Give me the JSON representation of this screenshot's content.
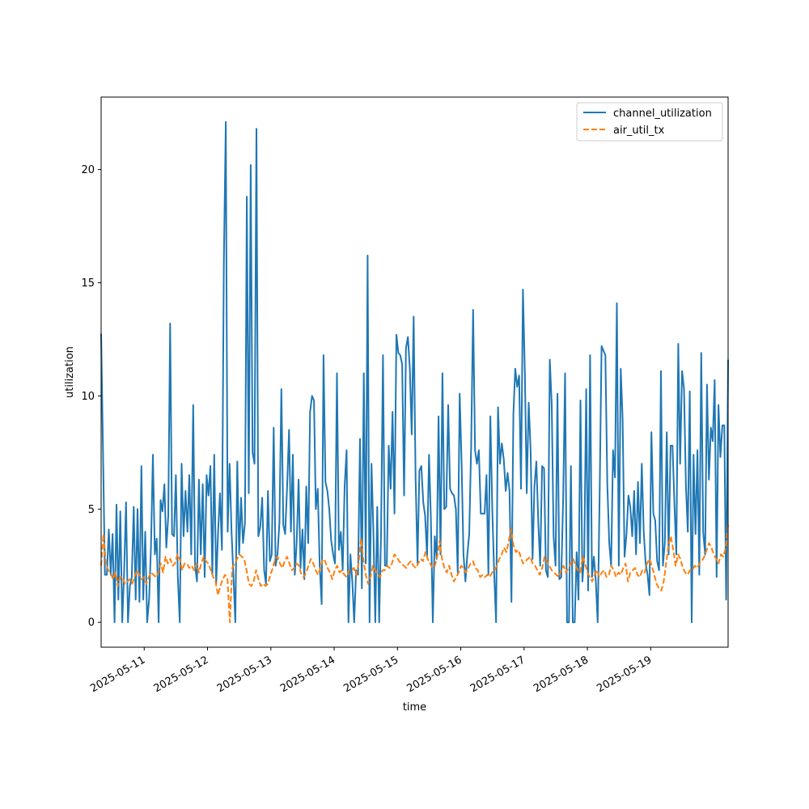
{
  "chart_data": {
    "type": "line",
    "title": "",
    "xlabel": "time",
    "ylabel": "utilization",
    "x_range": [
      "2025-05-10T07:40",
      "2025-05-20T05:20"
    ],
    "xlim": [
      "2025-05-10T07:40",
      "2025-05-20T05:20"
    ],
    "ylim": [
      -1.1,
      23.2
    ],
    "grid": false,
    "legend_position": "upper right",
    "x_ticks": [
      "2025-05-11",
      "2025-05-12",
      "2025-05-13",
      "2025-05-14",
      "2025-05-15",
      "2025-05-16",
      "2025-05-17",
      "2025-05-18",
      "2025-05-19"
    ],
    "y_ticks": [
      0,
      5,
      10,
      15,
      20
    ],
    "series": [
      {
        "name": "channel_utilization",
        "color": "#1f77b4",
        "dash": "solid",
        "values": [
          12.75,
          7.4,
          2.1,
          2.1,
          4.1,
          2.1,
          3.9,
          0.0,
          5.2,
          1.0,
          4.9,
          0.0,
          2.2,
          5.3,
          0.0,
          1.6,
          2.0,
          5.1,
          1.0,
          5.0,
          0.9,
          6.9,
          1.0,
          4.0,
          0.0,
          1.0,
          3.3,
          7.4,
          3.0,
          3.7,
          0.0,
          5.4,
          4.9,
          6.1,
          3.3,
          4.7,
          13.2,
          3.9,
          3.8,
          6.5,
          2.0,
          0.0,
          7.0,
          3.8,
          5.8,
          4.0,
          6.5,
          3.0,
          9.6,
          2.5,
          1.8,
          6.3,
          3.0,
          6.1,
          2.0,
          6.5,
          5.6,
          6.9,
          2.1,
          7.4,
          1.7,
          4.0,
          5.7,
          3.2,
          15.9,
          22.1,
          4.0,
          7.0,
          4.0,
          2.1,
          0.0,
          7.1,
          3.0,
          5.5,
          3.5,
          4.4,
          18.8,
          5.7,
          20.2,
          7.5,
          7.0,
          21.8,
          3.8,
          4.2,
          5.5,
          2.3,
          1.7,
          5.8,
          2.7,
          3.0,
          8.6,
          2.5,
          3.0,
          4.4,
          10.3,
          4.3,
          3.9,
          6.0,
          8.5,
          4.0,
          7.4,
          2.1,
          3.5,
          6.3,
          2.4,
          4.1,
          1.9,
          6.0,
          3.5,
          9.3,
          10.0,
          9.8,
          5.0,
          5.9,
          2.5,
          0.8,
          11.8,
          6.2,
          5.8,
          5.0,
          3.6,
          3.0,
          2.6,
          11.0,
          3.2,
          4.0,
          2.3,
          6.0,
          7.6,
          0.0,
          3.0,
          1.8,
          0.0,
          2.3,
          2.1,
          8.1,
          1.5,
          11.0,
          2.6,
          16.2,
          0.0,
          7.0,
          4.1,
          0.0,
          5.1,
          0.0,
          3.9,
          11.8,
          2.5,
          2.5,
          7.8,
          5.9,
          9.3,
          4.8,
          12.7,
          11.9,
          11.8,
          11.4,
          5.6,
          12.1,
          12.6,
          11.2,
          8.3,
          13.5,
          6.4,
          2.6,
          6.7,
          6.9,
          5.3,
          4.7,
          2.9,
          7.4,
          4.6,
          0.0,
          3.8,
          2.8,
          9.1,
          3.0,
          11.0,
          5.0,
          5.1,
          9.6,
          5.9,
          5.7,
          5.6,
          5.0,
          2.2,
          10.1,
          7.0,
          3.0,
          1.8,
          3.0,
          3.9,
          7.8,
          13.8,
          7.6,
          7.0,
          7.6,
          4.8,
          4.8,
          4.8,
          6.5,
          2.1,
          9.1,
          5.0,
          2.1,
          0.0,
          9.5,
          7.0,
          7.9,
          7.2,
          5.8,
          6.6,
          5.8,
          0.9,
          9.2,
          11.2,
          10.4,
          10.9,
          5.9,
          14.7,
          11.0,
          5.7,
          9.7,
          7.6,
          2.8,
          6.0,
          7.1,
          4.4,
          2.5,
          6.9,
          6.8,
          2.3,
          2.0,
          11.6,
          9.6,
          3.8,
          2.5,
          10.1,
          1.9,
          2.0,
          5.6,
          11.0,
          0.0,
          0.0,
          6.9,
          0.0,
          0.0,
          3.1,
          1.0,
          9.8,
          1.8,
          3.0,
          10.3,
          1.4,
          11.8,
          2.0,
          2.9,
          1.8,
          0.0,
          5.6,
          12.2,
          12.0,
          11.8,
          6.1,
          3.5,
          2.5,
          7.6,
          6.4,
          14.1,
          2.5,
          11.2,
          9.0,
          2.9,
          3.9,
          5.6,
          5.1,
          3.8,
          5.8,
          3.0,
          6.2,
          3.5,
          7.0,
          4.0,
          2.6,
          2.1,
          1.2,
          8.4,
          4.8,
          4.5,
          2.7,
          2.3,
          11.1,
          2.5,
          3.5,
          8.4,
          3.0,
          7.8,
          7.8,
          5.3,
          3.0,
          12.3,
          7.0,
          11.1,
          10.3,
          6.0,
          4.0,
          10.2,
          0.0,
          7.4,
          3.9,
          7.6,
          2.1,
          11.9,
          4.0,
          3.0,
          10.5,
          6.3,
          8.6,
          8.0,
          10.7,
          2.0,
          9.6,
          7.3,
          8.7,
          8.7,
          1.0,
          11.6
        ]
      },
      {
        "name": "air_util_tx",
        "color": "#ff7f0e",
        "dash": "dashed",
        "values": [
          2.5,
          3.9,
          2.6,
          2.3,
          2.2,
          1.9,
          2.2,
          1.6,
          2.0,
          2.0,
          1.7,
          1.8,
          1.9,
          1.7,
          2.0,
          2.3,
          2.1,
          1.9,
          2.0,
          1.7,
          2.0,
          2.2,
          2.1,
          2.0,
          2.2,
          2.6,
          2.2,
          2.9,
          2.6,
          2.8,
          2.5,
          2.6,
          3.0,
          2.8,
          2.3,
          2.6,
          2.6,
          2.4,
          2.5,
          2.3,
          2.6,
          2.2,
          2.6,
          2.9,
          2.7,
          2.6,
          2.3,
          2.0,
          1.8,
          1.2,
          1.6,
          1.9,
          2.1,
          1.9,
          0.0,
          2.4,
          2.6,
          2.8,
          3.0,
          2.9,
          2.8,
          2.3,
          1.7,
          1.6,
          1.8,
          2.3,
          1.9,
          1.6,
          1.7,
          1.6,
          1.7,
          2.1,
          2.4,
          2.8,
          2.9,
          2.6,
          2.4,
          2.7,
          2.9,
          2.6,
          2.3,
          2.4,
          2.6,
          2.5,
          2.1,
          2.0,
          2.2,
          2.5,
          2.8,
          2.6,
          2.3,
          2.1,
          2.4,
          2.8,
          2.7,
          2.4,
          2.2,
          1.9,
          2.3,
          2.5,
          2.2,
          2.3,
          2.1,
          2.0,
          2.3,
          2.3,
          2.4,
          2.1,
          2.6,
          3.7,
          2.8,
          2.1,
          1.7,
          2.0,
          2.5,
          2.3,
          2.1,
          2.0,
          2.3,
          2.3,
          2.5,
          2.4,
          2.6,
          3.0,
          2.9,
          2.7,
          2.6,
          2.5,
          2.4,
          2.6,
          2.7,
          2.5,
          2.4,
          2.6,
          2.8,
          2.7,
          3.1,
          2.8,
          2.6,
          2.4,
          2.5,
          2.9,
          3.6,
          2.8,
          2.4,
          2.2,
          2.5,
          2.1,
          1.8,
          2.0,
          2.2,
          2.5,
          2.4,
          2.2,
          2.4,
          2.6,
          2.7,
          2.4,
          2.3,
          2.0,
          2.1,
          2.0,
          2.1,
          2.0,
          2.2,
          2.3,
          2.5,
          2.8,
          3.0,
          3.3,
          3.1,
          3.6,
          4.1,
          3.4,
          3.1,
          3.2,
          2.9,
          2.6,
          2.7,
          2.8,
          2.9,
          2.6,
          2.5,
          2.3,
          2.1,
          2.4,
          2.9,
          2.7,
          2.5,
          2.3,
          2.2,
          2.1,
          2.0,
          2.3,
          2.5,
          2.2,
          2.4,
          2.6,
          2.8,
          2.5,
          2.3,
          2.2,
          2.9,
          2.6,
          2.2,
          2.0,
          1.8,
          2.1,
          2.3,
          2.0,
          2.2,
          2.3,
          2.0,
          2.1,
          2.5,
          2.3,
          2.0,
          2.2,
          2.1,
          2.4,
          2.6,
          1.8,
          2.2,
          2.3,
          2.4,
          2.1,
          2.0,
          2.3,
          2.2,
          2.6,
          2.8,
          2.5,
          2.1,
          1.7,
          1.5,
          1.4,
          1.8,
          2.6,
          3.4,
          3.8,
          3.2,
          2.5,
          3.0,
          2.8,
          2.4,
          2.2,
          2.1,
          2.3,
          2.3,
          2.5,
          2.4,
          2.6,
          2.7,
          2.9,
          3.2,
          3.5,
          3.3,
          3.0,
          2.8,
          2.6,
          3.0,
          2.9,
          3.3,
          4.3
        ]
      }
    ]
  }
}
